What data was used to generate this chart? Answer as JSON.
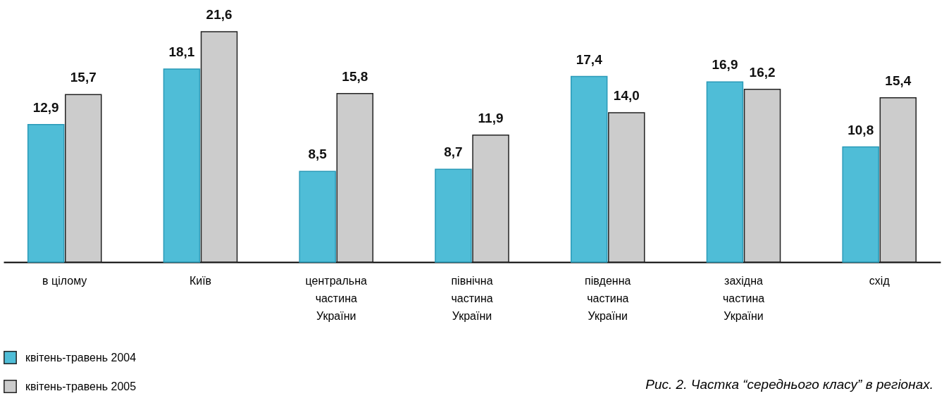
{
  "chart_data": {
    "type": "bar",
    "title": "Рис. 2. Частка “середнього класу” в регіонах.",
    "categories": [
      "в цілому",
      "Київ",
      "центральна\nчастина\nУкраїни",
      "північна\nчастина\nУкраїни",
      "південна\nчастина\nУкраїни",
      "західна\nчастина\nУкраїни",
      "схід"
    ],
    "series": [
      {
        "name": "квітень-травень 2004",
        "color": "#4fbdd7",
        "values": [
          12.9,
          18.1,
          8.5,
          8.7,
          17.4,
          16.9,
          10.8
        ],
        "value_labels": [
          "12,9",
          "18,1",
          "8,5",
          "8,7",
          "17,4",
          "16,9",
          "10,8"
        ]
      },
      {
        "name": "квітень-травень 2005",
        "color": "#cccccc",
        "values": [
          15.7,
          21.6,
          15.8,
          11.9,
          14.0,
          16.2,
          15.4
        ],
        "value_labels": [
          "15,7",
          "21,6",
          "15,8",
          "11,9",
          "14,0",
          "16,2",
          "15,4"
        ]
      }
    ],
    "legend": "bottom left",
    "grid": false,
    "tick_labels": "x"
  }
}
